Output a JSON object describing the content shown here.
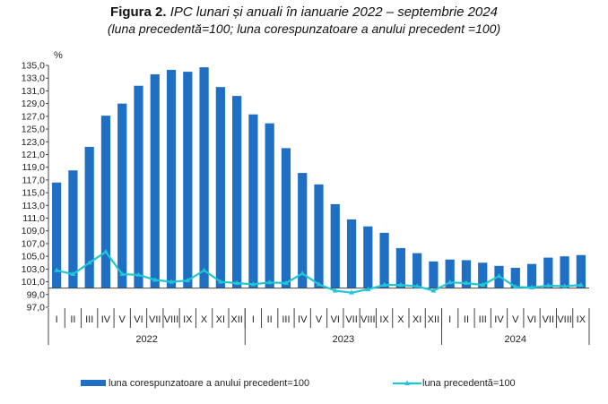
{
  "figure": {
    "label": "Figura 2.",
    "title": "IPC lunari și anuali în ianuarie 2022 – septembrie 2024",
    "subtitle": "(luna precedentă=100; luna corespunzatoare a anului precedent =100)"
  },
  "chart_data": {
    "type": "bar",
    "unit_label": "%",
    "ylim": [
      97.0,
      135.0
    ],
    "yticks": [
      "135,0",
      "133,0",
      "131,0",
      "129,0",
      "127,0",
      "125,0",
      "123,0",
      "121,0",
      "119,0",
      "117,0",
      "115,0",
      "113,0",
      "111,0",
      "109,0",
      "107,0",
      "105,0",
      "103,0",
      "101,0",
      "99,0",
      "97,0"
    ],
    "ytick_values": [
      135,
      133,
      131,
      129,
      127,
      125,
      123,
      121,
      119,
      117,
      115,
      113,
      111,
      109,
      107,
      105,
      103,
      101,
      99,
      97
    ],
    "baseline": 100,
    "grid": false,
    "legend_position": "bottom",
    "categories": [
      "I",
      "II",
      "III",
      "IV",
      "V",
      "VI",
      "VII",
      "VIII",
      "IX",
      "X",
      "XI",
      "XII",
      "I",
      "II",
      "III",
      "IV",
      "V",
      "VI",
      "VII",
      "VIII",
      "IX",
      "X",
      "XI",
      "XII",
      "I",
      "II",
      "III",
      "IV",
      "V",
      "VI",
      "VII",
      "VIII",
      "IX"
    ],
    "years": [
      {
        "label": "2022",
        "count": 12
      },
      {
        "label": "2023",
        "count": 12
      },
      {
        "label": "2024",
        "count": 9
      }
    ],
    "series": [
      {
        "name": "luna corespunzatoare a anului precedent=100",
        "kind": "bar",
        "color": "#1f6fc4",
        "values": [
          116.6,
          118.5,
          122.2,
          127.1,
          129.0,
          131.8,
          133.6,
          134.3,
          134.0,
          134.7,
          131.6,
          130.2,
          127.3,
          125.9,
          122.0,
          118.1,
          116.3,
          113.2,
          110.8,
          109.7,
          108.7,
          106.3,
          105.5,
          104.2,
          104.5,
          104.4,
          104.0,
          103.5,
          103.2,
          103.8,
          104.8,
          105.0,
          105.2
        ]
      },
      {
        "name": "luna precedentă=100",
        "kind": "line",
        "color": "#1fc6d6",
        "values": [
          102.8,
          102.2,
          104.0,
          105.7,
          102.2,
          102.1,
          101.3,
          101.0,
          101.2,
          102.8,
          101.0,
          100.8,
          100.6,
          100.9,
          100.8,
          102.3,
          100.6,
          99.6,
          99.3,
          99.8,
          100.5,
          100.5,
          100.3,
          99.6,
          100.9,
          100.8,
          100.5,
          101.9,
          100.2,
          100.1,
          100.4,
          100.3,
          100.5
        ]
      }
    ]
  }
}
